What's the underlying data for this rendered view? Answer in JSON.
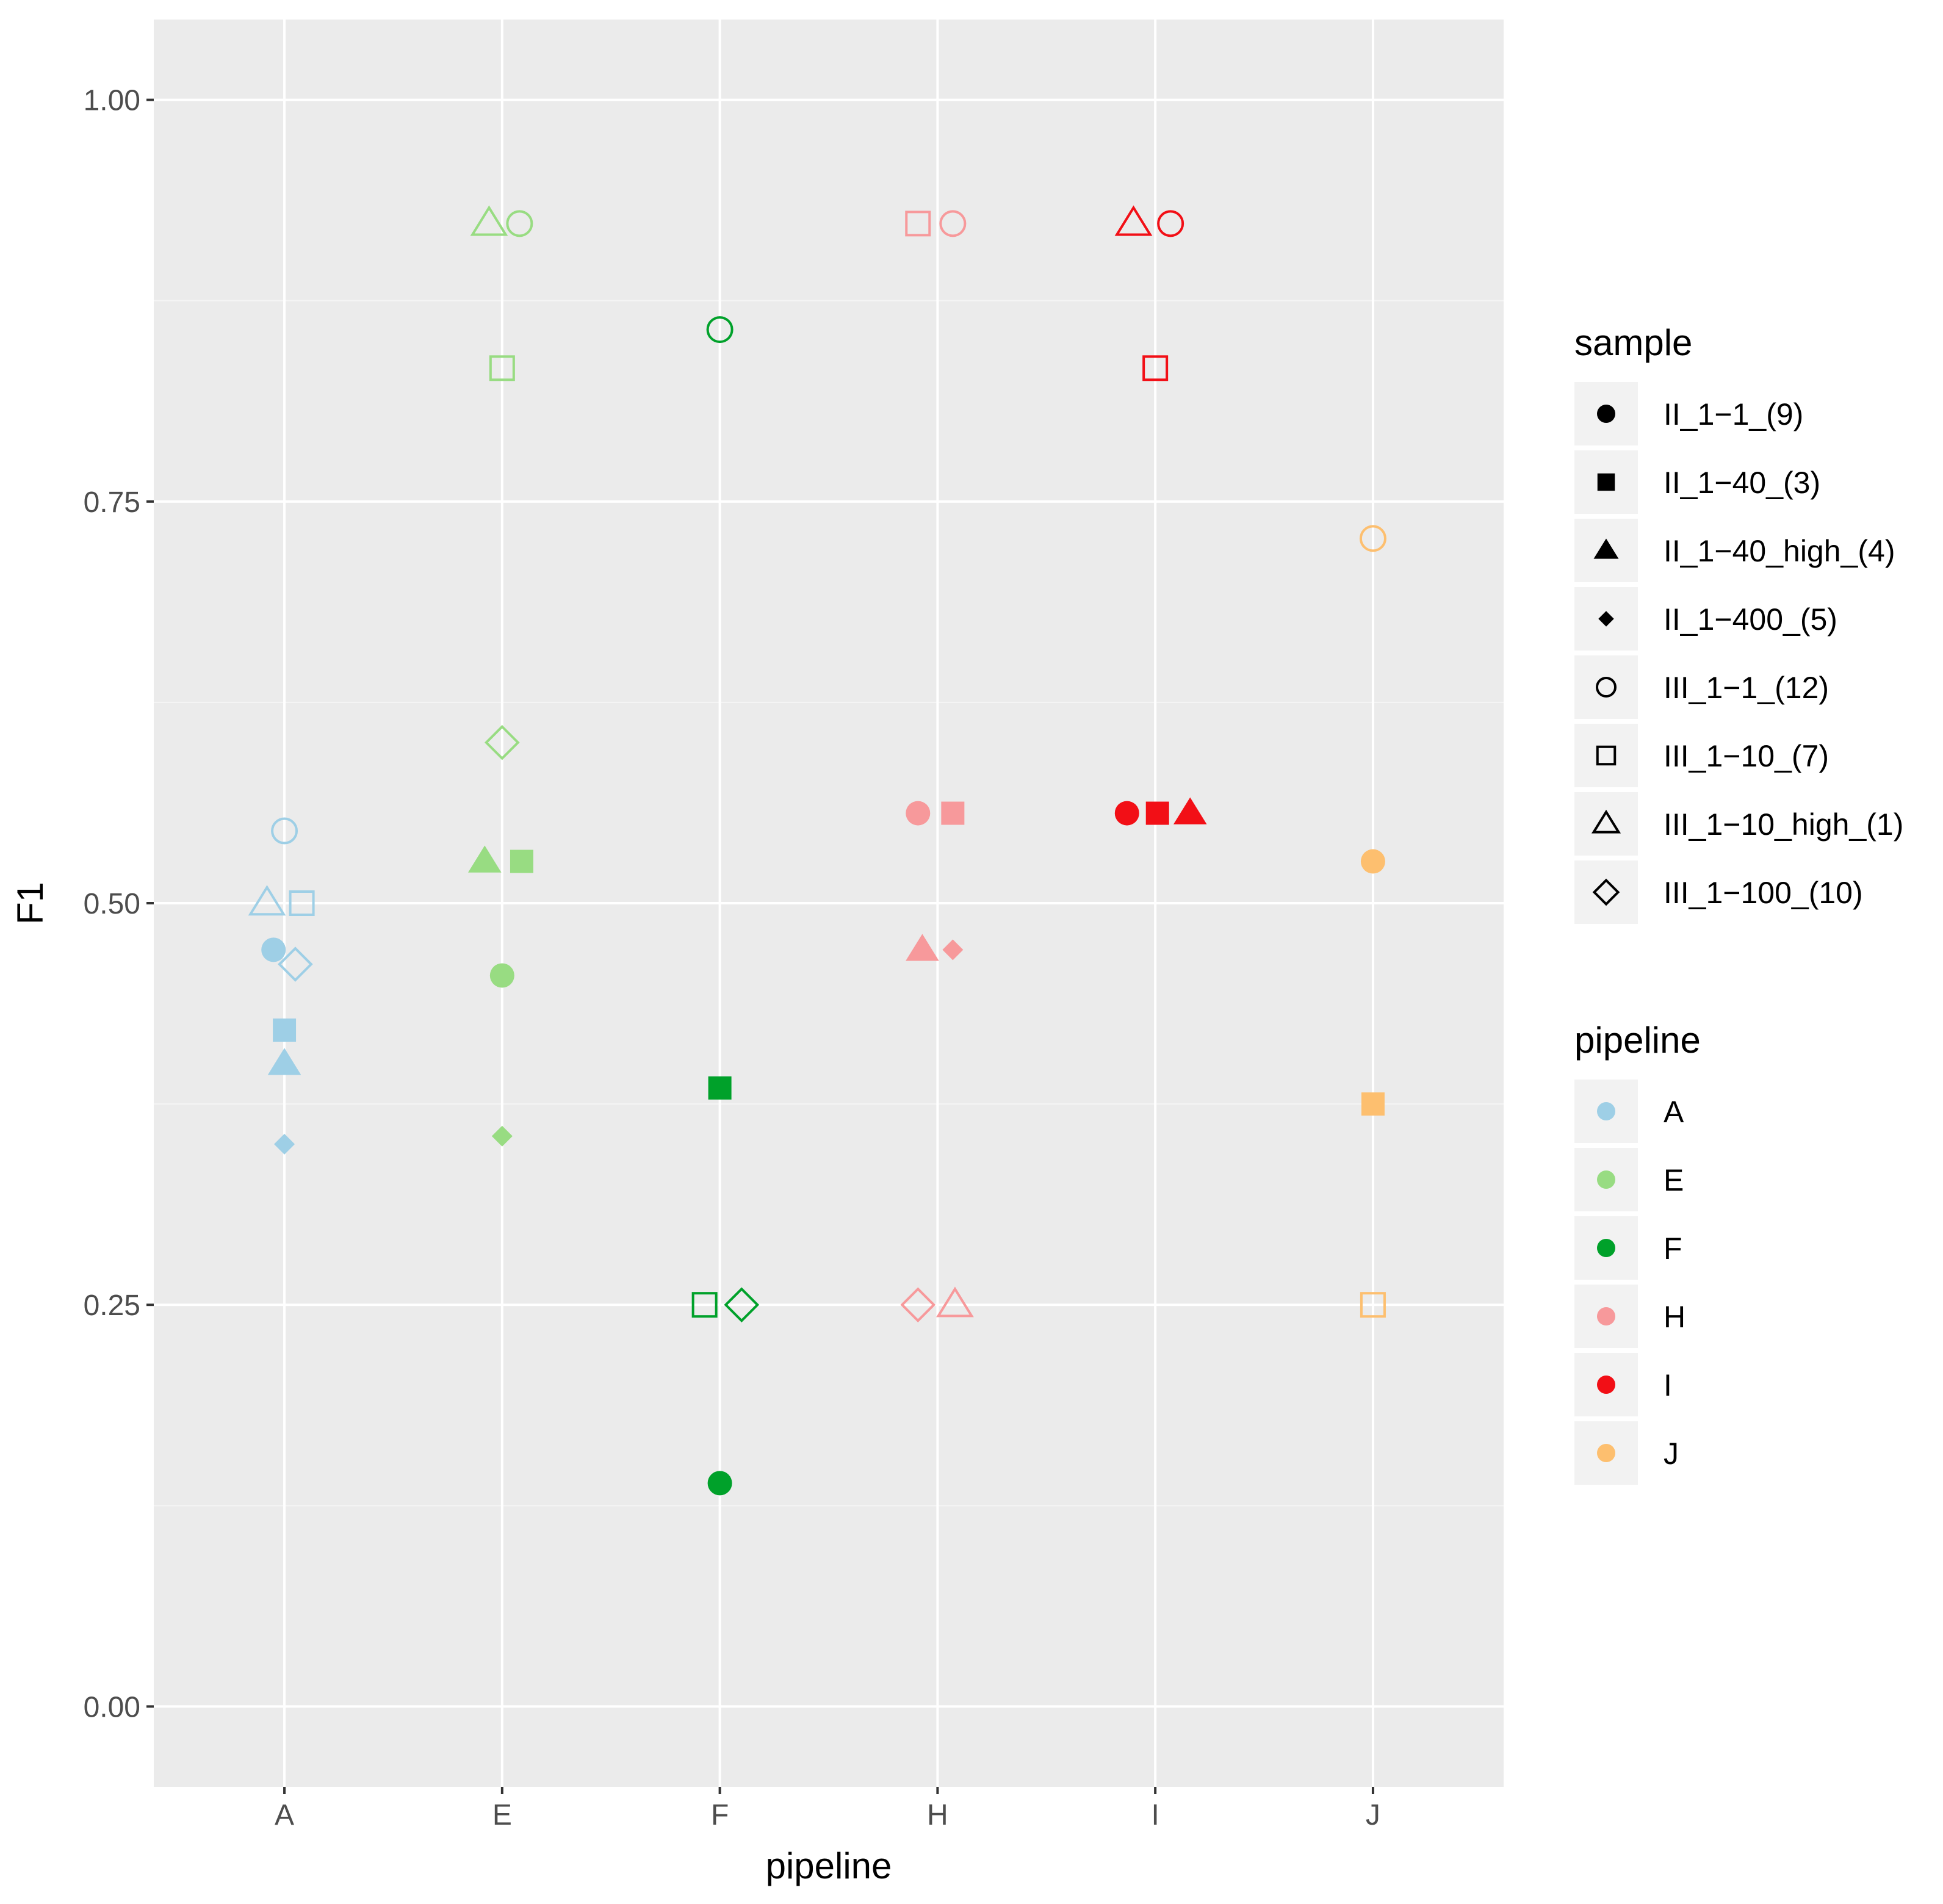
{
  "chart_data": {
    "type": "scatter",
    "title": "",
    "xlabel": "pipeline",
    "ylabel": "F1",
    "ylim": [
      -0.05,
      1.05
    ],
    "x_categories": [
      "A",
      "E",
      "F",
      "H",
      "I",
      "J"
    ],
    "y_ticks": [
      0,
      0.25,
      0.5,
      0.75,
      1.0
    ],
    "y_tick_labels": [
      "0.00",
      "0.25",
      "0.50",
      "0.75",
      "1.00"
    ],
    "grid": true,
    "legends": {
      "sample": {
        "title": "sample",
        "items": [
          {
            "label": "II_1−1_(9)",
            "shape": "filled-circle"
          },
          {
            "label": "II_1−40_(3)",
            "shape": "filled-square"
          },
          {
            "label": "II_1−40_high_(4)",
            "shape": "filled-triangle"
          },
          {
            "label": "II_1−400_(5)",
            "shape": "filled-diamond"
          },
          {
            "label": "III_1−1_(12)",
            "shape": "open-circle"
          },
          {
            "label": "III_1−10_(7)",
            "shape": "open-square"
          },
          {
            "label": "III_1−10_high_(1)",
            "shape": "open-triangle"
          },
          {
            "label": "III_1−100_(10)",
            "shape": "open-diamond"
          }
        ]
      },
      "pipeline": {
        "title": "pipeline",
        "items": [
          {
            "label": "A",
            "color": "#9ecfe6"
          },
          {
            "label": "E",
            "color": "#98dc82"
          },
          {
            "label": "F",
            "color": "#00a12a"
          },
          {
            "label": "H",
            "color": "#f7999b"
          },
          {
            "label": "I",
            "color": "#f20f16"
          },
          {
            "label": "J",
            "color": "#fdbf6f"
          }
        ]
      }
    },
    "series": [
      {
        "pipeline": "A",
        "color": "#9ecfe6",
        "points": [
          {
            "sample": "II_1−1_(9)",
            "shape": "filled-circle",
            "x": "A",
            "dx": -0.05,
            "y": 0.471
          },
          {
            "sample": "II_1−40_(3)",
            "shape": "filled-square",
            "x": "A",
            "dx": 0.0,
            "y": 0.421
          },
          {
            "sample": "II_1−40_high_(4)",
            "shape": "filled-triangle",
            "x": "A",
            "dx": 0.0,
            "y": 0.4
          },
          {
            "sample": "II_1−400_(5)",
            "shape": "filled-diamond",
            "x": "A",
            "dx": 0.0,
            "y": 0.35
          },
          {
            "sample": "III_1−1_(12)",
            "shape": "open-circle",
            "x": "A",
            "dx": 0.0,
            "y": 0.545
          },
          {
            "sample": "III_1−10_(7)",
            "shape": "open-square",
            "x": "A",
            "dx": 0.08,
            "y": 0.5
          },
          {
            "sample": "III_1−10_high_(1)",
            "shape": "open-triangle",
            "x": "A",
            "dx": -0.08,
            "y": 0.5
          },
          {
            "sample": "III_1−100_(10)",
            "shape": "open-diamond",
            "x": "A",
            "dx": 0.05,
            "y": 0.462
          }
        ]
      },
      {
        "pipeline": "E",
        "color": "#98dc82",
        "points": [
          {
            "sample": "II_1−1_(9)",
            "shape": "filled-circle",
            "x": "E",
            "dx": 0.0,
            "y": 0.455
          },
          {
            "sample": "II_1−40_(3)",
            "shape": "filled-square",
            "x": "E",
            "dx": 0.09,
            "y": 0.526
          },
          {
            "sample": "II_1−40_high_(4)",
            "shape": "filled-triangle",
            "x": "E",
            "dx": -0.08,
            "y": 0.526
          },
          {
            "sample": "II_1−400_(5)",
            "shape": "filled-diamond",
            "x": "E",
            "dx": 0.0,
            "y": 0.355
          },
          {
            "sample": "III_1−1_(12)",
            "shape": "open-circle",
            "x": "E",
            "dx": 0.08,
            "y": 0.923
          },
          {
            "sample": "III_1−10_(7)",
            "shape": "open-square",
            "x": "E",
            "dx": 0.0,
            "y": 0.833
          },
          {
            "sample": "III_1−10_high_(1)",
            "shape": "open-triangle",
            "x": "E",
            "dx": -0.06,
            "y": 0.923
          },
          {
            "sample": "III_1−100_(10)",
            "shape": "open-diamond",
            "x": "E",
            "dx": 0.0,
            "y": 0.6
          }
        ]
      },
      {
        "pipeline": "F",
        "color": "#00a12a",
        "points": [
          {
            "sample": "II_1−1_(9)",
            "shape": "filled-circle",
            "x": "F",
            "dx": 0.0,
            "y": 0.139
          },
          {
            "sample": "II_1−40_(3)",
            "shape": "filled-square",
            "x": "F",
            "dx": 0.0,
            "y": 0.385
          },
          {
            "sample": "III_1−1_(12)",
            "shape": "open-circle",
            "x": "F",
            "dx": 0.0,
            "y": 0.857
          },
          {
            "sample": "III_1−10_(7)",
            "shape": "open-square",
            "x": "F",
            "dx": -0.07,
            "y": 0.25
          },
          {
            "sample": "III_1−100_(10)",
            "shape": "open-diamond",
            "x": "F",
            "dx": 0.1,
            "y": 0.25
          }
        ]
      },
      {
        "pipeline": "H",
        "color": "#f7999b",
        "points": [
          {
            "sample": "II_1−1_(9)",
            "shape": "filled-circle",
            "x": "H",
            "dx": -0.09,
            "y": 0.556
          },
          {
            "sample": "II_1−40_(3)",
            "shape": "filled-square",
            "x": "H",
            "dx": 0.07,
            "y": 0.556
          },
          {
            "sample": "II_1−40_high_(4)",
            "shape": "filled-triangle",
            "x": "H",
            "dx": -0.07,
            "y": 0.471
          },
          {
            "sample": "II_1−400_(5)",
            "shape": "filled-diamond",
            "x": "H",
            "dx": 0.07,
            "y": 0.471
          },
          {
            "sample": "III_1−1_(12)",
            "shape": "open-circle",
            "x": "H",
            "dx": 0.07,
            "y": 0.923
          },
          {
            "sample": "III_1−10_(7)",
            "shape": "open-square",
            "x": "H",
            "dx": -0.09,
            "y": 0.923
          },
          {
            "sample": "III_1−10_high_(1)",
            "shape": "open-triangle",
            "x": "H",
            "dx": 0.08,
            "y": 0.25
          },
          {
            "sample": "III_1−100_(10)",
            "shape": "open-diamond",
            "x": "H",
            "dx": -0.09,
            "y": 0.25
          }
        ]
      },
      {
        "pipeline": "I",
        "color": "#f20f16",
        "points": [
          {
            "sample": "II_1−1_(9)",
            "shape": "filled-circle",
            "x": "I",
            "dx": -0.13,
            "y": 0.556
          },
          {
            "sample": "II_1−40_(3)",
            "shape": "filled-square",
            "x": "I",
            "dx": 0.01,
            "y": 0.556
          },
          {
            "sample": "II_1−40_high_(4)",
            "shape": "filled-triangle",
            "x": "I",
            "dx": 0.16,
            "y": 0.556
          },
          {
            "sample": "III_1−1_(12)",
            "shape": "open-circle",
            "x": "I",
            "dx": 0.07,
            "y": 0.923
          },
          {
            "sample": "III_1−10_(7)",
            "shape": "open-square",
            "x": "I",
            "dx": 0.0,
            "y": 0.833
          },
          {
            "sample": "III_1−10_high_(1)",
            "shape": "open-triangle",
            "x": "I",
            "dx": -0.1,
            "y": 0.923
          }
        ]
      },
      {
        "pipeline": "J",
        "color": "#fdbf6f",
        "points": [
          {
            "sample": "II_1−1_(9)",
            "shape": "filled-circle",
            "x": "J",
            "dx": 0.0,
            "y": 0.526
          },
          {
            "sample": "II_1−40_(3)",
            "shape": "filled-square",
            "x": "J",
            "dx": 0.0,
            "y": 0.375
          },
          {
            "sample": "III_1−1_(12)",
            "shape": "open-circle",
            "x": "J",
            "dx": 0.0,
            "y": 0.727
          },
          {
            "sample": "III_1−10_(7)",
            "shape": "open-square",
            "x": "J",
            "dx": 0.0,
            "y": 0.25
          }
        ]
      }
    ]
  }
}
